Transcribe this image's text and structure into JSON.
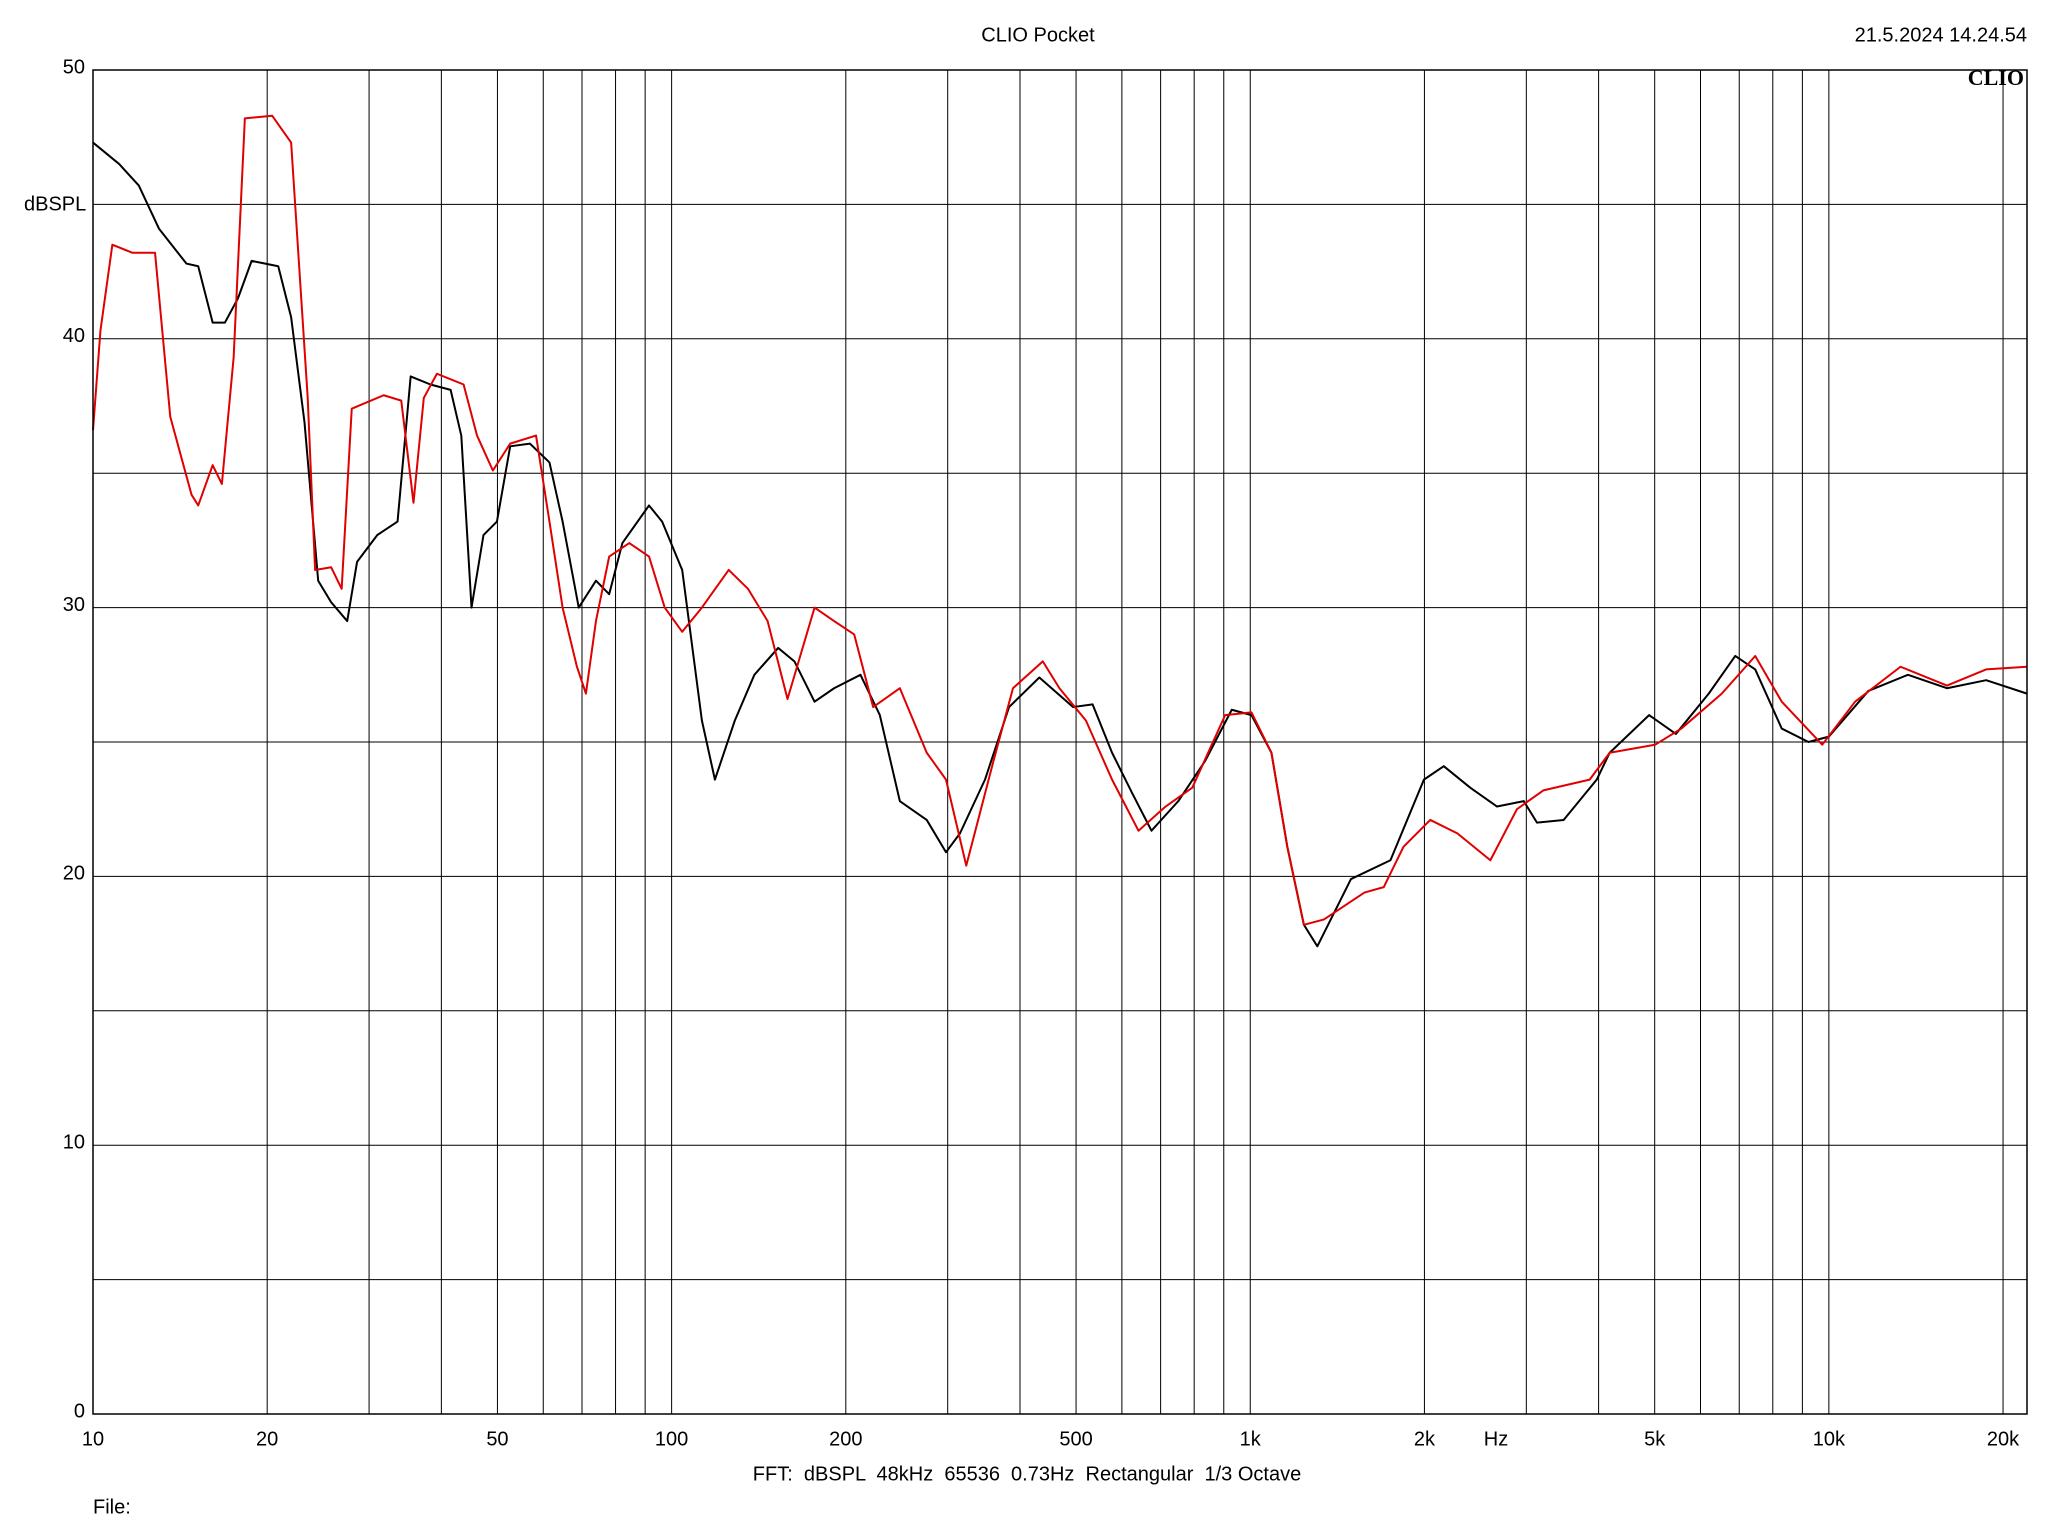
{
  "chart_data": {
    "type": "line",
    "title": "CLIO Pocket",
    "date": "21.5.2024 14.24.54",
    "logo": "CLIO",
    "ylabel": "dBSPL",
    "xlabel": "Hz",
    "footer": "FFT:  dBSPL  48kHz  65536  0.73Hz  Rectangular  1/3 Octave",
    "file_label": "File:",
    "xlog": true,
    "grid": true,
    "xlim": [
      10,
      22000
    ],
    "ylim": [
      0,
      50
    ],
    "xticks": [
      10,
      20,
      50,
      100,
      200,
      500,
      {
        "value": 1000,
        "label": "1k"
      },
      {
        "value": 2000,
        "label": "2k"
      },
      {
        "value": 5000,
        "label": "5k"
      },
      {
        "value": 10000,
        "label": "10k"
      },
      {
        "value": 20000,
        "label": "20k"
      }
    ],
    "xminor": [
      30,
      40,
      60,
      70,
      80,
      90,
      300,
      400,
      600,
      700,
      800,
      900,
      3000,
      4000,
      6000,
      7000,
      8000,
      9000
    ],
    "yticks": [
      0,
      10,
      20,
      30,
      40,
      50
    ],
    "yminor": [
      5,
      15,
      25,
      35,
      45
    ],
    "series": [
      {
        "color": "#000000",
        "x": [
          10,
          11.1,
          12.0,
          13.0,
          14.5,
          15.2,
          16.1,
          16.9,
          17.8,
          18.8,
          19.8,
          20.9,
          22.0,
          23.2,
          24.5,
          25.8,
          27.5,
          28.6,
          31.0,
          33.6,
          35.4,
          38.3,
          41.5,
          43.3,
          45.1,
          47.3,
          49.9,
          52.6,
          56.9,
          61.5,
          64.8,
          69.1,
          74.0,
          78.0,
          82.2,
          91.4,
          96.3,
          104.3,
          112.8,
          118.8,
          128.6,
          139.0,
          152.8,
          163,
          176.6,
          190.9,
          212,
          229,
          248,
          276,
          298,
          315,
          348,
          383,
          432,
          494,
          534,
          577,
          625,
          675,
          751,
          836,
          929,
          1005,
          1088,
          1159,
          1238,
          1306,
          1493,
          1747,
          1996,
          2160,
          2400,
          2670,
          2970,
          3130,
          3480,
          3970,
          4180,
          4890,
          5440,
          6200,
          6890,
          7460,
          8290,
          9220,
          10000,
          11700,
          13700,
          16000,
          18700,
          22000
        ],
        "values": [
          47.3,
          46.5,
          45.7,
          44.1,
          42.8,
          42.7,
          40.6,
          40.6,
          41.5,
          42.9,
          42.8,
          42.7,
          40.8,
          36.9,
          31.0,
          30.2,
          29.5,
          31.7,
          32.7,
          33.2,
          38.6,
          38.3,
          38.1,
          36.4,
          30.0,
          32.7,
          33.2,
          36.0,
          36.1,
          35.4,
          33.2,
          30.0,
          31.0,
          30.5,
          32.4,
          33.8,
          33.2,
          31.4,
          25.8,
          23.6,
          25.8,
          27.5,
          28.5,
          28.0,
          26.5,
          27.0,
          27.5,
          26.0,
          22.8,
          22.1,
          20.9,
          21.6,
          23.6,
          26.3,
          27.4,
          26.3,
          26.4,
          24.6,
          23.1,
          21.7,
          22.8,
          24.3,
          26.2,
          26.0,
          24.6,
          21.1,
          18.2,
          17.4,
          19.9,
          20.6,
          23.6,
          24.1,
          23.3,
          22.6,
          22.8,
          22.0,
          22.1,
          23.6,
          24.6,
          26.0,
          25.3,
          26.8,
          28.2,
          27.7,
          25.5,
          25.0,
          25.2,
          26.9,
          27.5,
          27.0,
          27.3,
          26.8
        ]
      },
      {
        "color": "#e00000",
        "x": [
          10,
          10.3,
          10.8,
          11.7,
          12.8,
          13.6,
          14.8,
          15.2,
          16.1,
          16.7,
          17.5,
          18.3,
          20.4,
          22.0,
          23.5,
          24.2,
          25.8,
          26.9,
          28.0,
          31.8,
          34.1,
          35.8,
          37.3,
          39.3,
          43.7,
          46.1,
          49.1,
          52.6,
          58.3,
          61.5,
          64.8,
          68.6,
          71.1,
          74.0,
          78.0,
          84.5,
          91.4,
          97.3,
          104.3,
          112.8,
          125.5,
          135.5,
          146.5,
          158.6,
          176.6,
          190.9,
          206.8,
          223,
          248,
          276,
          298,
          323,
          358,
          389,
          438,
          468,
          520,
          577,
          641,
          714,
          794,
          905,
          1005,
          1088,
          1159,
          1238,
          1341,
          1575,
          1701,
          1840,
          2047,
          2280,
          2600,
          2890,
          3210,
          3860,
          4180,
          5010,
          5560,
          6530,
          7460,
          8290,
          9740,
          11100,
          13300,
          16000,
          18700,
          22000
        ],
        "values": [
          36.6,
          40.3,
          43.5,
          43.2,
          43.2,
          37.1,
          34.2,
          33.8,
          35.3,
          34.6,
          39.3,
          48.2,
          48.3,
          47.3,
          37.8,
          31.4,
          31.5,
          30.7,
          37.4,
          37.9,
          37.7,
          33.9,
          37.8,
          38.7,
          38.3,
          36.4,
          35.1,
          36.1,
          36.4,
          33.2,
          30.0,
          27.8,
          26.8,
          29.5,
          31.9,
          32.4,
          31.9,
          30.0,
          29.1,
          30.0,
          31.4,
          30.7,
          29.5,
          26.6,
          30.0,
          29.5,
          29.0,
          26.3,
          27.0,
          24.6,
          23.6,
          20.4,
          24.1,
          27.0,
          28.0,
          27.0,
          25.8,
          23.6,
          21.7,
          22.6,
          23.3,
          26.0,
          26.1,
          24.6,
          21.1,
          18.2,
          18.4,
          19.4,
          19.6,
          21.1,
          22.1,
          21.6,
          20.6,
          22.5,
          23.2,
          23.6,
          24.6,
          24.9,
          25.5,
          26.8,
          28.2,
          26.5,
          24.9,
          26.5,
          27.8,
          27.1,
          27.7,
          27.8
        ]
      }
    ]
  }
}
